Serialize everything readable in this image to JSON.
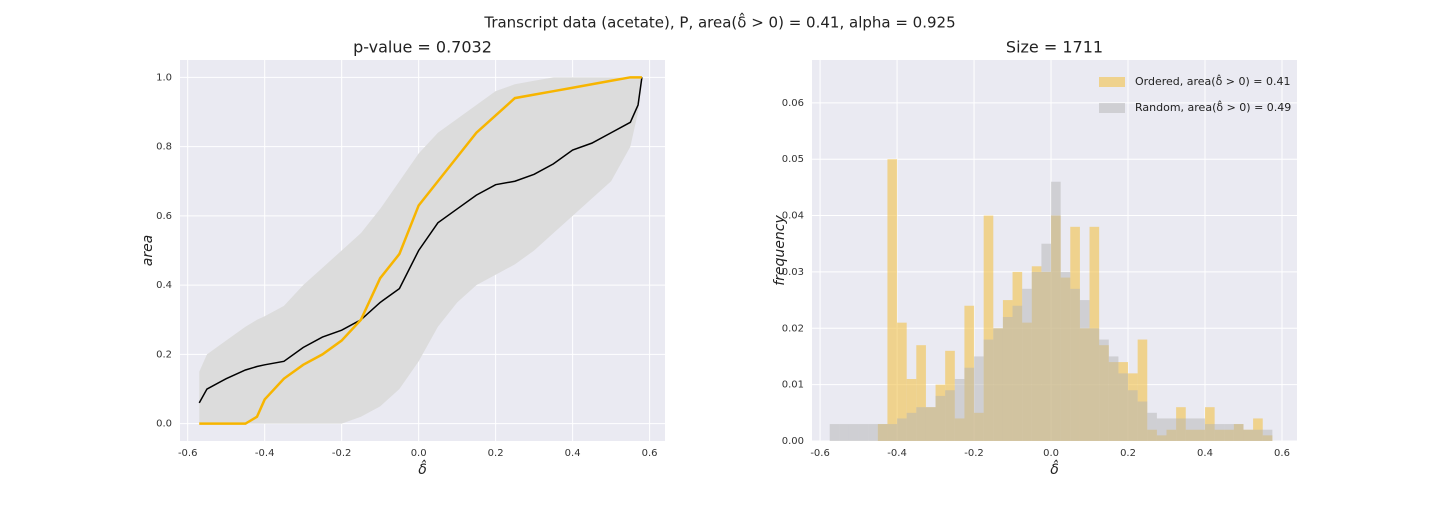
{
  "title": "Transcript data (acetate), P, area(δ̂ > 0) = 0.41, alpha = 0.925",
  "chart_data": [
    {
      "type": "line",
      "title": "p-value = 0.7032",
      "x_label": "δ̂",
      "y_label": "area",
      "x": [
        -0.57,
        -0.55,
        -0.5,
        -0.45,
        -0.42,
        -0.4,
        -0.35,
        -0.3,
        -0.25,
        -0.2,
        -0.15,
        -0.1,
        -0.05,
        0,
        0.05,
        0.1,
        0.15,
        0.2,
        0.25,
        0.3,
        0.35,
        0.4,
        0.45,
        0.5,
        0.55,
        0.57,
        0.58
      ],
      "band": {
        "color": "#dcdcdc",
        "upper": [
          0.15,
          0.2,
          0.24,
          0.28,
          0.3,
          0.31,
          0.34,
          0.4,
          0.45,
          0.5,
          0.55,
          0.62,
          0.7,
          0.78,
          0.84,
          0.88,
          0.92,
          0.96,
          0.98,
          0.99,
          1.0,
          1.0,
          1.0,
          1.0,
          1.0,
          1.0,
          1.0
        ],
        "lower": [
          0,
          0,
          0,
          0,
          0,
          0,
          0,
          0,
          0,
          0,
          0.02,
          0.05,
          0.1,
          0.18,
          0.28,
          0.35,
          0.4,
          0.43,
          0.46,
          0.5,
          0.55,
          0.6,
          0.65,
          0.7,
          0.8,
          0.9,
          1.0
        ]
      },
      "series": [
        {
          "color": "#000000",
          "width": 1.5,
          "values": [
            0.06,
            0.1,
            0.13,
            0.155,
            0.165,
            0.17,
            0.18,
            0.22,
            0.25,
            0.27,
            0.3,
            0.35,
            0.39,
            0.5,
            0.58,
            0.62,
            0.66,
            0.69,
            0.7,
            0.72,
            0.75,
            0.79,
            0.81,
            0.84,
            0.87,
            0.92,
            1.0
          ]
        },
        {
          "color": "#f7b500",
          "width": 2.5,
          "values": [
            0,
            0,
            0,
            0,
            0.02,
            0.07,
            0.13,
            0.17,
            0.2,
            0.24,
            0.3,
            0.42,
            0.49,
            0.63,
            0.7,
            0.77,
            0.84,
            0.89,
            0.94,
            0.95,
            0.96,
            0.97,
            0.98,
            0.99,
            1.0,
            1.0,
            1.0
          ]
        }
      ],
      "xlim": [
        -0.62,
        0.64
      ],
      "ylim": [
        -0.05,
        1.05
      ],
      "xticks": [
        -0.6,
        -0.4,
        -0.2,
        {
          "value": 0,
          "label": "0.0"
        },
        0.2,
        0.4,
        0.6
      ],
      "yticks": [
        {
          "value": 0,
          "label": "0.0"
        },
        0.2,
        0.4,
        0.6,
        0.8,
        {
          "value": 1,
          "label": "1.0"
        }
      ],
      "grid": true
    },
    {
      "type": "histogram",
      "title": "Size = 1711",
      "x_label": "δ̂",
      "y_label": "frequency",
      "bins": [
        -0.575,
        -0.55,
        -0.525,
        -0.5,
        -0.475,
        -0.45,
        -0.425,
        -0.4,
        -0.375,
        -0.35,
        -0.325,
        -0.3,
        -0.275,
        -0.25,
        -0.225,
        -0.2,
        -0.175,
        -0.15,
        -0.125,
        -0.1,
        -0.075,
        -0.05,
        -0.025,
        0,
        0.025,
        0.05,
        0.075,
        0.1,
        0.125,
        0.15,
        0.175,
        0.2,
        0.225,
        0.25,
        0.275,
        0.3,
        0.325,
        0.35,
        0.375,
        0.4,
        0.425,
        0.45,
        0.475,
        0.5,
        0.525,
        0.55,
        0.575
      ],
      "series": [
        {
          "name": "Ordered, area(δ̂ > 0) = 0.41",
          "color": "#f2c24a",
          "opacity": 0.6,
          "values": [
            0,
            0,
            0,
            0,
            0,
            0.003,
            0.05,
            0.021,
            0.011,
            0.017,
            0.006,
            0.01,
            0.016,
            0.004,
            0.024,
            0.005,
            0.04,
            0.02,
            0.025,
            0.03,
            0.021,
            0.031,
            0.03,
            0.04,
            0.029,
            0.038,
            0.02,
            0.038,
            0.017,
            0.014,
            0.014,
            0.012,
            0.018,
            0.002,
            0.001,
            0.002,
            0.006,
            0.002,
            0.002,
            0.006,
            0.002,
            0.002,
            0.003,
            0.002,
            0.004,
            0.001
          ]
        },
        {
          "name": "Random, area(δ̂ > 0) = 0.49",
          "color": "#b4b4b4",
          "opacity": 0.5,
          "values": [
            0.003,
            0.003,
            0.003,
            0.003,
            0.003,
            0.003,
            0.003,
            0.004,
            0.005,
            0.006,
            0.006,
            0.008,
            0.009,
            0.011,
            0.013,
            0.015,
            0.018,
            0.02,
            0.022,
            0.024,
            0.027,
            0.03,
            0.035,
            0.046,
            0.03,
            0.027,
            0.025,
            0.02,
            0.018,
            0.015,
            0.012,
            0.009,
            0.007,
            0.005,
            0.004,
            0.004,
            0.004,
            0.004,
            0.004,
            0.003,
            0.003,
            0.003,
            0.003,
            0.002,
            0.002,
            0.002
          ]
        }
      ],
      "xlim": [
        -0.621,
        0.639
      ],
      "ylim": [
        0,
        0.0676
      ],
      "xticks": [
        -0.6,
        -0.4,
        -0.2,
        {
          "value": 0,
          "label": "0.0"
        },
        0.2,
        0.4,
        0.6
      ],
      "yticks": [
        {
          "value": 0,
          "label": "0.00"
        },
        {
          "value": 0.01,
          "label": "0.01"
        },
        {
          "value": 0.02,
          "label": "0.02"
        },
        {
          "value": 0.03,
          "label": "0.03"
        },
        {
          "value": 0.04,
          "label": "0.04"
        },
        {
          "value": 0.05,
          "label": "0.05"
        },
        {
          "value": 0.06,
          "label": "0.06"
        }
      ],
      "grid": true,
      "legend": "upper right"
    }
  ]
}
